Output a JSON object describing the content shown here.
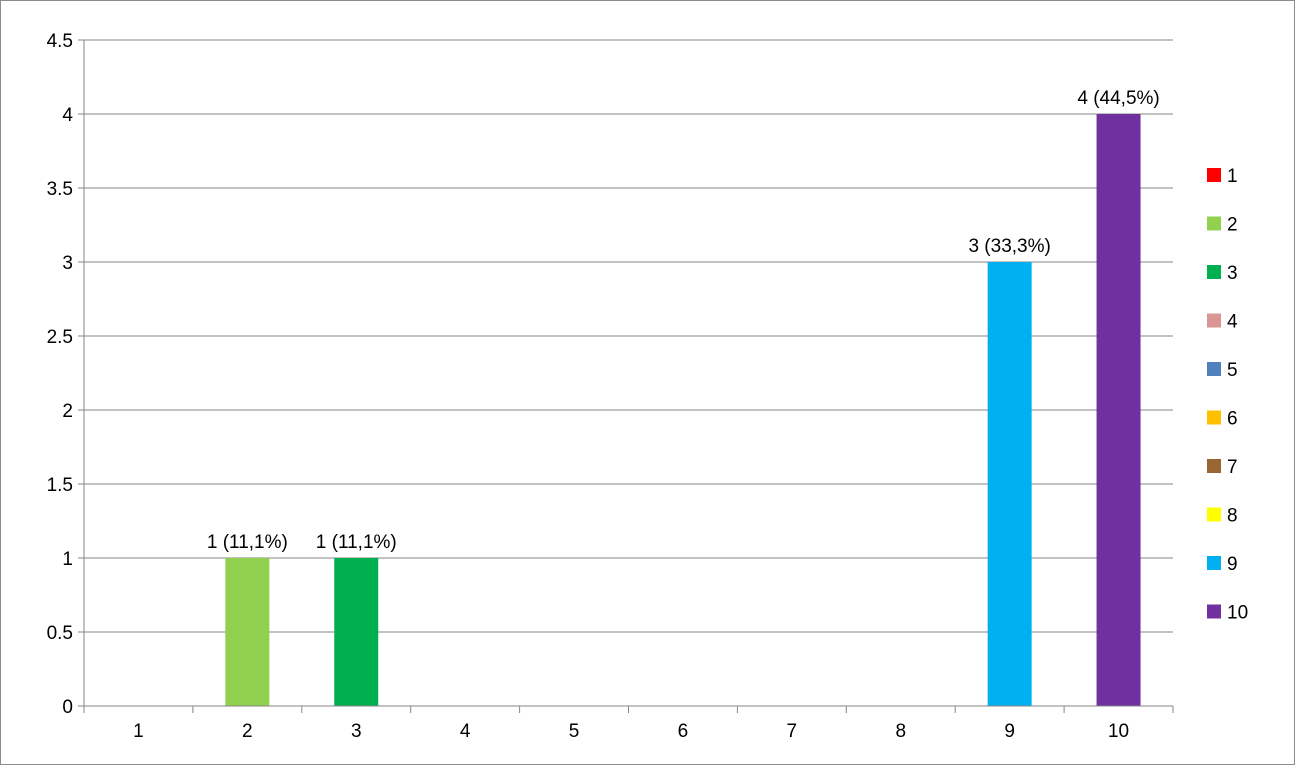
{
  "chart_data": {
    "type": "bar",
    "title": "",
    "xlabel": "",
    "ylabel": "",
    "categories": [
      "1",
      "2",
      "3",
      "4",
      "5",
      "6",
      "7",
      "8",
      "9",
      "10"
    ],
    "values": [
      0,
      1,
      1,
      0,
      0,
      0,
      0,
      0,
      3,
      4
    ],
    "data_labels": [
      "",
      "1 (11,1%)",
      "1 (11,1%)",
      "",
      "",
      "",
      "",
      "",
      "3 (33,3%)",
      "4 (44,5%)"
    ],
    "ylim": [
      0,
      4.5
    ],
    "yticks": [
      "0",
      "0.5",
      "1",
      "1.5",
      "2",
      "2.5",
      "3",
      "3.5",
      "4",
      "4.5"
    ],
    "ytick_values": [
      0,
      0.5,
      1,
      1.5,
      2,
      2.5,
      3,
      3.5,
      4,
      4.5
    ],
    "grid": true,
    "legend_position": "right",
    "legend": [
      {
        "label": "1",
        "color": "#ff0000"
      },
      {
        "label": "2",
        "color": "#92d050"
      },
      {
        "label": "3",
        "color": "#00b050"
      },
      {
        "label": "4",
        "color": "#da9694"
      },
      {
        "label": "5",
        "color": "#4f81bd"
      },
      {
        "label": "6",
        "color": "#ffc000"
      },
      {
        "label": "7",
        "color": "#996633"
      },
      {
        "label": "8",
        "color": "#ffff00"
      },
      {
        "label": "9",
        "color": "#00b0f0"
      },
      {
        "label": "10",
        "color": "#7030a0"
      }
    ]
  }
}
